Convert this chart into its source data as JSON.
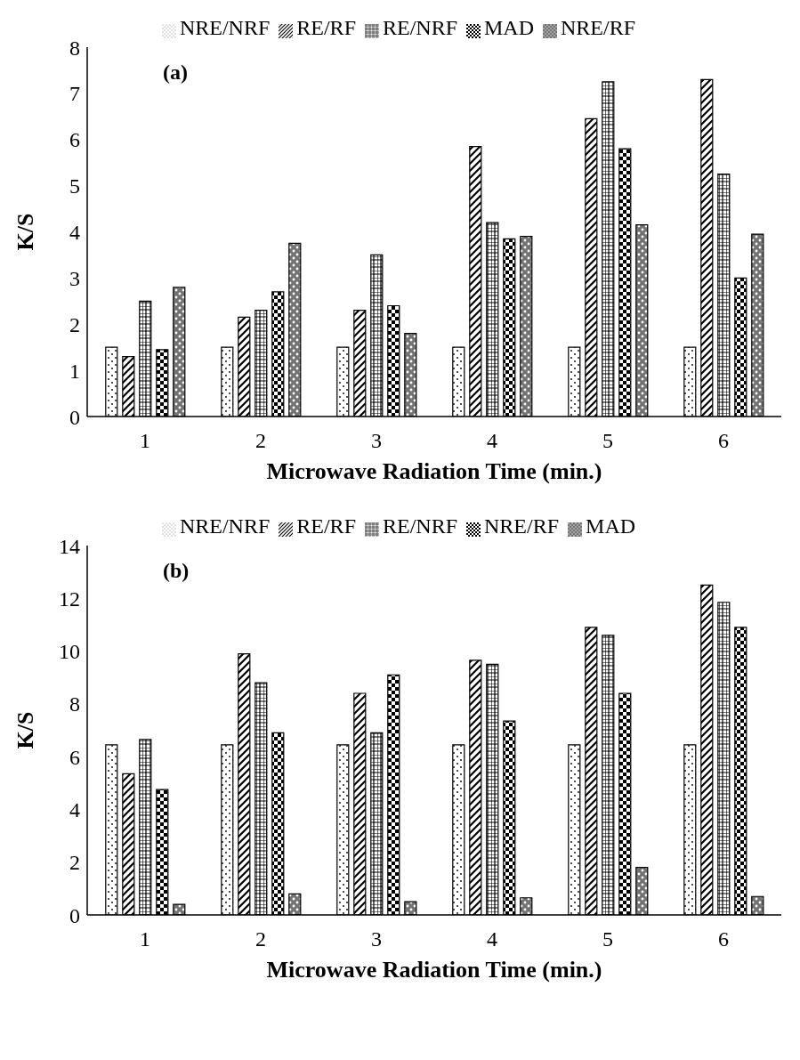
{
  "chart_data": [
    {
      "type": "bar",
      "annotations": [
        "(a)"
      ],
      "xlabel": "Microwave Radiation Time (min.)",
      "ylabel": "K/S",
      "categories": [
        "1",
        "2",
        "3",
        "4",
        "5",
        "6"
      ],
      "ylim": [
        0,
        8
      ],
      "yticks": [
        0,
        1,
        2,
        3,
        4,
        5,
        6,
        7,
        8
      ],
      "legend": "top",
      "grid": false,
      "series": [
        {
          "name": "NRE/NRF",
          "color": "#000000",
          "values": [
            1.5,
            1.5,
            1.5,
            1.5,
            1.5,
            1.5
          ]
        },
        {
          "name": "RE/RF",
          "color": "#000000",
          "values": [
            1.3,
            2.15,
            2.3,
            5.85,
            6.45,
            7.3
          ]
        },
        {
          "name": "RE/NRF",
          "color": "#000000",
          "values": [
            2.5,
            2.3,
            3.5,
            4.2,
            7.25,
            5.25
          ]
        },
        {
          "name": "MAD",
          "color": "#000000",
          "values": [
            1.45,
            2.7,
            2.4,
            3.85,
            5.8,
            3.0
          ]
        },
        {
          "name": "NRE/RF",
          "color": "#000000",
          "values": [
            2.8,
            3.75,
            1.8,
            3.9,
            4.15,
            3.95
          ]
        }
      ]
    },
    {
      "type": "bar",
      "annotations": [
        "(b)"
      ],
      "xlabel": "Microwave Radiation Time (min.)",
      "ylabel": "K/S",
      "categories": [
        "1",
        "2",
        "3",
        "4",
        "5",
        "6"
      ],
      "ylim": [
        0,
        14
      ],
      "yticks": [
        0,
        2,
        4,
        6,
        8,
        10,
        12,
        14
      ],
      "legend": "top",
      "grid": false,
      "series": [
        {
          "name": "NRE/NRF",
          "color": "#000000",
          "values": [
            6.45,
            6.45,
            6.45,
            6.45,
            6.45,
            6.45
          ]
        },
        {
          "name": "RE/RF",
          "color": "#000000",
          "values": [
            5.35,
            9.9,
            8.4,
            9.65,
            10.9,
            12.5
          ]
        },
        {
          "name": "RE/NRF",
          "color": "#000000",
          "values": [
            6.65,
            8.8,
            6.9,
            9.5,
            10.6,
            11.85
          ]
        },
        {
          "name": "NRE/RF",
          "color": "#000000",
          "values": [
            4.75,
            6.9,
            9.1,
            7.35,
            8.4,
            10.9
          ]
        },
        {
          "name": "MAD",
          "color": "#000000",
          "values": [
            0.4,
            0.8,
            0.5,
            0.65,
            1.8,
            0.7
          ]
        }
      ]
    }
  ]
}
